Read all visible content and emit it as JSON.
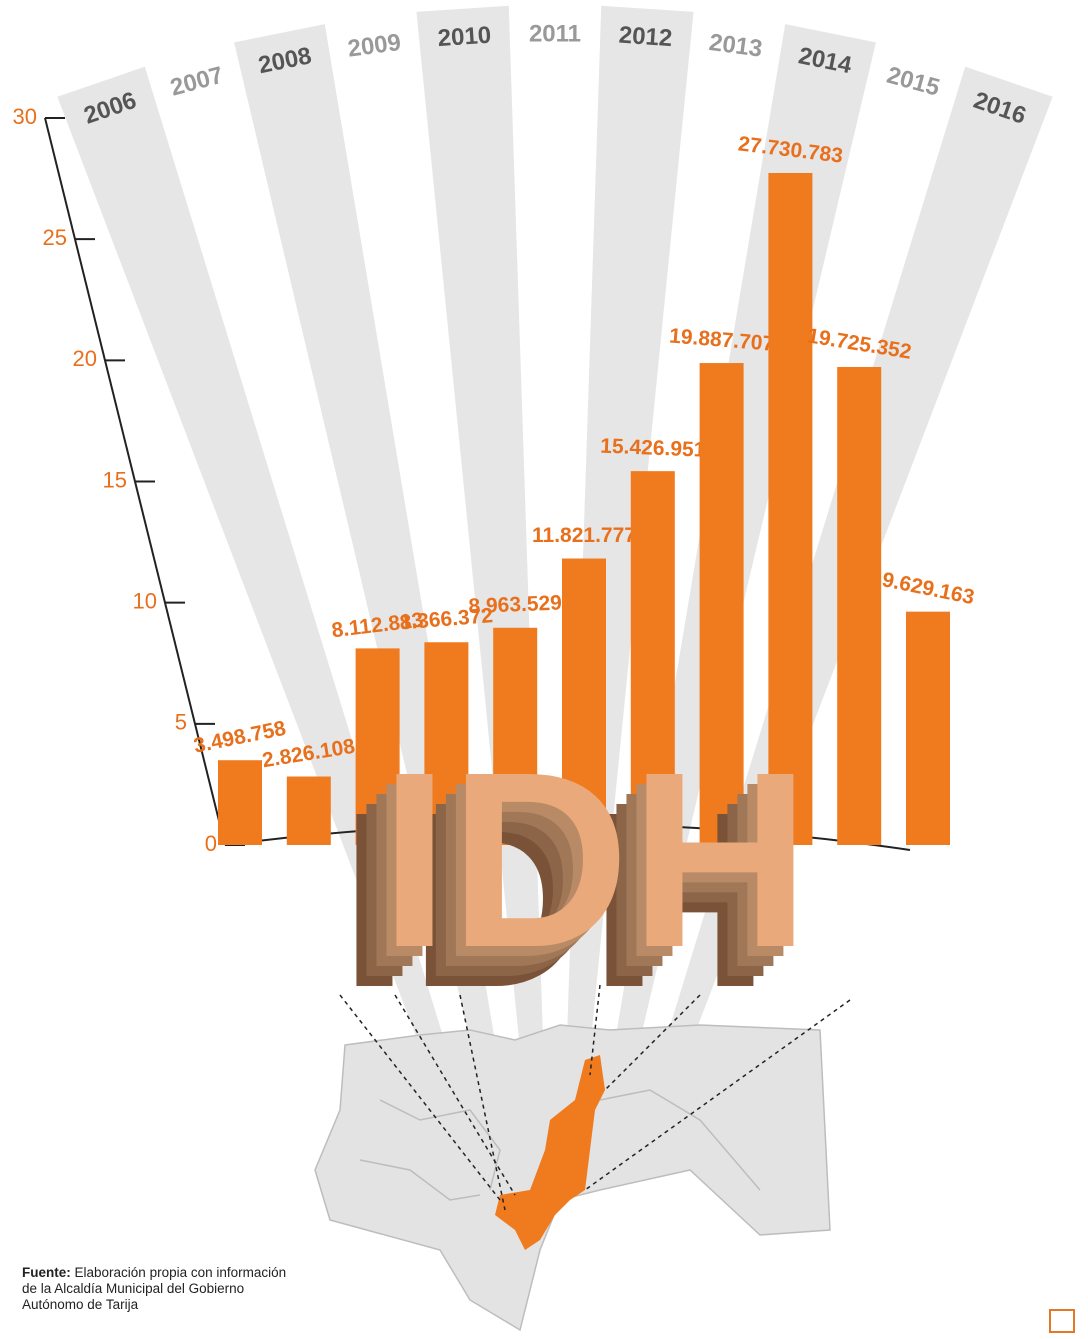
{
  "chart_data": {
    "type": "bar",
    "annotation": "IDH",
    "categories": [
      "2006",
      "2007",
      "2008",
      "2009",
      "2010",
      "2011",
      "2012",
      "2013",
      "2014",
      "2015",
      "2016"
    ],
    "values": [
      3.498758,
      2.826108,
      8.112813,
      8.366372,
      8.963529,
      11.821777,
      15.426951,
      19.887707,
      27.730783,
      19.725352,
      9.629163
    ],
    "value_labels": [
      "3.498.758",
      "2.826.108",
      "8.112.813",
      "8.366.372",
      "8.963.529",
      "11.821.777",
      "15.426.951",
      "19.887.707",
      "27.730.783",
      "19.725.352",
      "9.629.163"
    ],
    "color": "#f07a1e",
    "ylim": [
      0,
      30
    ],
    "yticks": [
      0,
      5,
      10,
      15,
      20,
      25,
      30
    ],
    "source_label": "Fuente:",
    "source_text": "Elaboración propia con información de la Alcaldía Municipal del Gobierno Autónomo de Tarija"
  }
}
